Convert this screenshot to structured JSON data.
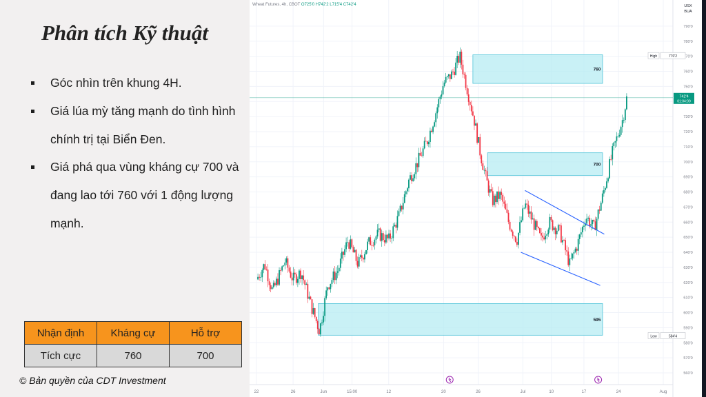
{
  "left_panel": {
    "title": "Phân tích Kỹ thuật",
    "bullets": [
      "Góc nhìn trên khung 4H.",
      "Giá lúa mỳ tăng mạnh do tình hình chính trị tại Biển Đen.",
      "Giá phá qua vùng kháng cự 700 và đang lao tới 760 với 1 động lượng mạnh."
    ],
    "table": {
      "headers": [
        "Nhận định",
        "Kháng cự",
        "Hỗ trợ"
      ],
      "row": [
        "Tích cực",
        "760",
        "700"
      ]
    },
    "copyright": "© Bản quyền của CDT Investment"
  },
  "chart_header": {
    "symbol": "Wheat Futures, 4h, CBOT",
    "ohlc": "O725'0 H742'2 L715'4 C742'4",
    "currency": "USX",
    "unit": "BUA"
  },
  "colors": {
    "up": "#089981",
    "down": "#f23645",
    "zone_fill": "#b2ebf2",
    "zone_stroke": "#4fc3d8",
    "channel": "#2962ff",
    "orange": "#f7941d"
  },
  "chart_data": {
    "type": "candlestick",
    "ylim": [
      555,
      800
    ],
    "yticks": [
      "790'0",
      "780'0",
      "770'0",
      "760'0",
      "750'0",
      "740'0",
      "730'0",
      "720'0",
      "710'0",
      "700'0",
      "690'0",
      "680'0",
      "670'0",
      "660'0",
      "650'0",
      "640'0",
      "630'0",
      "620'0",
      "610'0",
      "600'0",
      "590'0",
      "580'0",
      "570'0",
      "560'0"
    ],
    "xticks": [
      {
        "label": "22",
        "x": 0.0
      },
      {
        "label": "26",
        "x": 0.09
      },
      {
        "label": "Jun",
        "x": 0.165
      },
      {
        "label": "15:00",
        "x": 0.235
      },
      {
        "label": "12",
        "x": 0.325
      },
      {
        "label": "20",
        "x": 0.46
      },
      {
        "label": "26",
        "x": 0.545
      },
      {
        "label": "Jul",
        "x": 0.655
      },
      {
        "label": "10",
        "x": 0.725
      },
      {
        "label": "17",
        "x": 0.805
      },
      {
        "label": "24",
        "x": 0.89
      },
      {
        "label": "Aug",
        "x": 1.0
      }
    ],
    "price_path": [
      [
        0.0,
        622
      ],
      [
        0.02,
        632
      ],
      [
        0.04,
        614
      ],
      [
        0.07,
        634
      ],
      [
        0.09,
        622
      ],
      [
        0.11,
        627
      ],
      [
        0.135,
        604
      ],
      [
        0.155,
        588
      ],
      [
        0.175,
        618
      ],
      [
        0.2,
        628
      ],
      [
        0.225,
        648
      ],
      [
        0.25,
        632
      ],
      [
        0.275,
        646
      ],
      [
        0.3,
        652
      ],
      [
        0.325,
        648
      ],
      [
        0.35,
        664
      ],
      [
        0.375,
        688
      ],
      [
        0.4,
        702
      ],
      [
        0.42,
        714
      ],
      [
        0.44,
        732
      ],
      [
        0.46,
        752
      ],
      [
        0.48,
        758
      ],
      [
        0.5,
        770
      ],
      [
        0.515,
        752
      ],
      [
        0.535,
        728
      ],
      [
        0.55,
        706
      ],
      [
        0.565,
        688
      ],
      [
        0.58,
        674
      ],
      [
        0.6,
        678
      ],
      [
        0.62,
        660
      ],
      [
        0.64,
        648
      ],
      [
        0.66,
        672
      ],
      [
        0.68,
        660
      ],
      [
        0.7,
        648
      ],
      [
        0.72,
        660
      ],
      [
        0.745,
        654
      ],
      [
        0.77,
        632
      ],
      [
        0.79,
        646
      ],
      [
        0.81,
        664
      ],
      [
        0.83,
        656
      ],
      [
        0.85,
        676
      ],
      [
        0.875,
        706
      ],
      [
        0.9,
        728
      ],
      [
        0.91,
        742
      ]
    ],
    "zones": [
      {
        "label": "760",
        "top": 771,
        "bottom": 752,
        "x_start": 0.532
      },
      {
        "label": "700",
        "top": 706,
        "bottom": 691,
        "x_start": 0.568
      },
      {
        "label": "595",
        "top": 606,
        "bottom": 585,
        "x_start": 0.152
      }
    ],
    "channel_lines": [
      {
        "x1": 0.66,
        "y1": 681,
        "x2": 0.855,
        "y2": 652
      },
      {
        "x1": 0.65,
        "y1": 640,
        "x2": 0.845,
        "y2": 618
      }
    ],
    "current_price_line": 742.5,
    "high_label": {
      "text": "High",
      "value": "770'2",
      "price": 770.2
    },
    "low_label": {
      "text": "Low",
      "value": "584'4",
      "price": 584.5
    },
    "last_label": {
      "value": "742'4",
      "countdown": "01:04:09",
      "price": 742.5
    },
    "bottom_markers": [
      {
        "x": 0.475
      },
      {
        "x": 0.84
      }
    ]
  }
}
